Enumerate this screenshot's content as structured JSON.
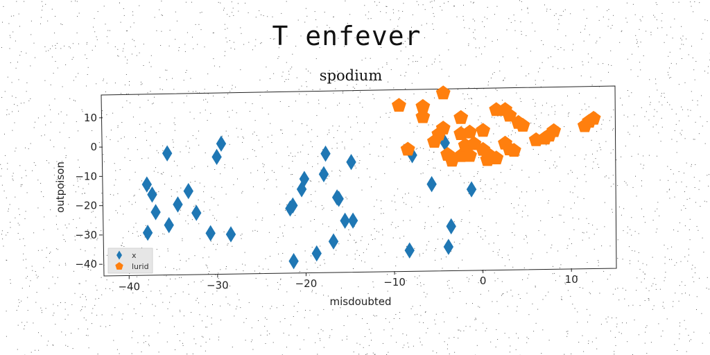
{
  "figure": {
    "suptitle": "T enfever"
  },
  "chart_data": {
    "type": "scatter",
    "title": "spodium",
    "xlabel": "misdoubted",
    "ylabel": "outpoison",
    "xlim": [
      -43,
      15
    ],
    "ylim": [
      -44,
      18
    ],
    "xticks": [
      -40,
      -30,
      -20,
      -10,
      0,
      10
    ],
    "yticks": [
      10,
      0,
      -10,
      -20,
      -30,
      -40
    ],
    "legend_position": "lower-left",
    "grid": false,
    "series": [
      {
        "name": "x",
        "marker": "diamond",
        "color": "#1f77b4",
        "points": [
          [
            -35.7,
            -2.5
          ],
          [
            -29.6,
            0.5
          ],
          [
            -30.1,
            -4.0
          ],
          [
            -38.0,
            -13.0
          ],
          [
            -37.4,
            -16.5
          ],
          [
            -33.3,
            -15.5
          ],
          [
            -37.0,
            -22.5
          ],
          [
            -34.5,
            -20.0
          ],
          [
            -32.4,
            -23.0
          ],
          [
            -37.9,
            -29.5
          ],
          [
            -35.5,
            -27.0
          ],
          [
            -30.8,
            -30.0
          ],
          [
            -28.5,
            -30.5
          ],
          [
            -17.8,
            -3.5
          ],
          [
            -14.9,
            -6.5
          ],
          [
            -20.2,
            -12.0
          ],
          [
            -20.5,
            -15.5
          ],
          [
            -18.0,
            -10.5
          ],
          [
            -21.8,
            -22.0
          ],
          [
            -21.5,
            -21.0
          ],
          [
            -16.5,
            -18.5
          ],
          [
            -16.3,
            -19.0
          ],
          [
            -15.6,
            -26.5
          ],
          [
            -14.7,
            -26.5
          ],
          [
            -16.9,
            -33.5
          ],
          [
            -18.8,
            -37.5
          ],
          [
            -21.4,
            -40.0
          ],
          [
            -8.0,
            -4.5
          ],
          [
            -4.3,
            -0.5
          ],
          [
            -5.8,
            -14.5
          ],
          [
            -1.3,
            -16.5
          ],
          [
            -3.6,
            -29.0
          ],
          [
            -3.9,
            -36.0
          ],
          [
            -8.3,
            -37.0
          ]
        ]
      },
      {
        "name": "lurid",
        "marker": "pentagon",
        "color": "#ff7f0e",
        "points": [
          [
            -4.5,
            16.5
          ],
          [
            -9.5,
            12.5
          ],
          [
            -6.8,
            12.0
          ],
          [
            -6.8,
            8.5
          ],
          [
            -2.5,
            8.0
          ],
          [
            1.5,
            10.5
          ],
          [
            2.5,
            10.5
          ],
          [
            3.0,
            8.5
          ],
          [
            4.0,
            6.0
          ],
          [
            4.5,
            5.0
          ],
          [
            -4.5,
            4.5
          ],
          [
            -5.0,
            2.5
          ],
          [
            -2.5,
            2.5
          ],
          [
            -1.5,
            3.0
          ],
          [
            0.0,
            3.5
          ],
          [
            -8.5,
            -2.5
          ],
          [
            -5.5,
            0.0
          ],
          [
            -4.0,
            -4.5
          ],
          [
            -3.5,
            -6.5
          ],
          [
            -2.5,
            -5.0
          ],
          [
            -2.0,
            -1.5
          ],
          [
            -1.0,
            -1.0
          ],
          [
            0.0,
            -3.0
          ],
          [
            0.5,
            -4.5
          ],
          [
            1.5,
            -6.0
          ],
          [
            0.5,
            -6.5
          ],
          [
            -1.5,
            -5.0
          ],
          [
            2.5,
            -1.0
          ],
          [
            3.0,
            -3.0
          ],
          [
            3.5,
            -3.5
          ],
          [
            6.0,
            0.0
          ],
          [
            7.0,
            0.5
          ],
          [
            7.5,
            1.5
          ],
          [
            8.0,
            3.0
          ],
          [
            11.5,
            4.5
          ],
          [
            12.0,
            6.0
          ],
          [
            12.5,
            7.0
          ]
        ]
      }
    ]
  }
}
